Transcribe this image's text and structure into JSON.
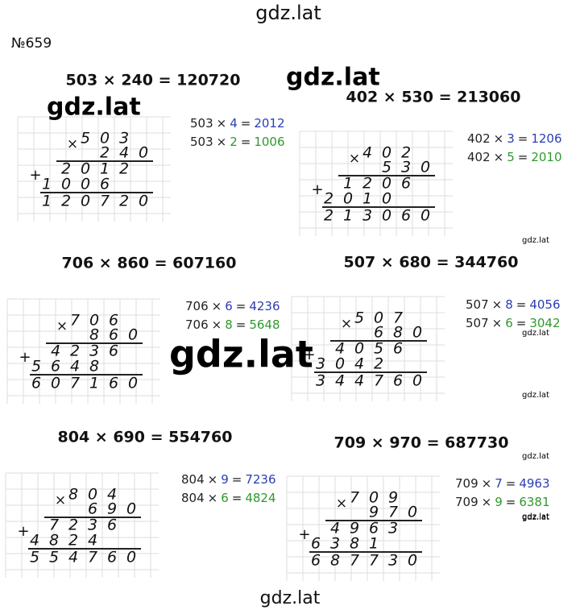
{
  "header": {
    "site": "gdz.lat",
    "task": "№659"
  },
  "signs": {
    "times": "×",
    "eq": "=",
    "plus": "+"
  },
  "problems": [
    {
      "equation": "503 × 240 = 120720",
      "steps": [
        {
          "a": "503",
          "b": "4",
          "r": "2012"
        },
        {
          "a": "503",
          "b": "2",
          "r": "1006"
        }
      ],
      "column": [
        "503",
        "240",
        "2012",
        "1006",
        "120720"
      ]
    },
    {
      "equation": "402 × 530 = 213060",
      "steps": [
        {
          "a": "402",
          "b": "3",
          "r": "1206"
        },
        {
          "a": "402",
          "b": "5",
          "r": "2010"
        }
      ],
      "column": [
        "402",
        "530",
        "1206",
        "2010",
        "213060"
      ]
    },
    {
      "equation": "706 × 860 = 607160",
      "steps": [
        {
          "a": "706",
          "b": "6",
          "r": "4236"
        },
        {
          "a": "706",
          "b": "8",
          "r": "5648"
        }
      ],
      "column": [
        "706",
        "860",
        "4236",
        "5648",
        "607160"
      ]
    },
    {
      "equation": "507 × 680 = 344760",
      "steps": [
        {
          "a": "507",
          "b": "8",
          "r": "4056"
        },
        {
          "a": "507",
          "b": "6",
          "r": "3042"
        }
      ],
      "column": [
        "507",
        "680",
        "4056",
        "3042",
        "344760"
      ]
    },
    {
      "equation": "804 × 690 = 554760",
      "steps": [
        {
          "a": "804",
          "b": "9",
          "r": "7236"
        },
        {
          "a": "804",
          "b": "6",
          "r": "4824"
        }
      ],
      "column": [
        "804",
        "690",
        "7236",
        "4824",
        "554760"
      ]
    },
    {
      "equation": "709 × 970 = 687730",
      "steps": [
        {
          "a": "709",
          "b": "7",
          "r": "4963"
        },
        {
          "a": "709",
          "b": "9",
          "r": "6381"
        }
      ],
      "column": [
        "709",
        "970",
        "4963",
        "6381",
        "687730"
      ]
    }
  ],
  "watermarks": [
    "gdz.lat",
    "gdz.lat",
    "gdz.lat",
    "gdz.lat",
    "gdz.lat",
    "gdz.lat",
    "gdz.lat",
    "gdz.lat",
    "gdz.lat"
  ],
  "footer": "gdz.lat"
}
